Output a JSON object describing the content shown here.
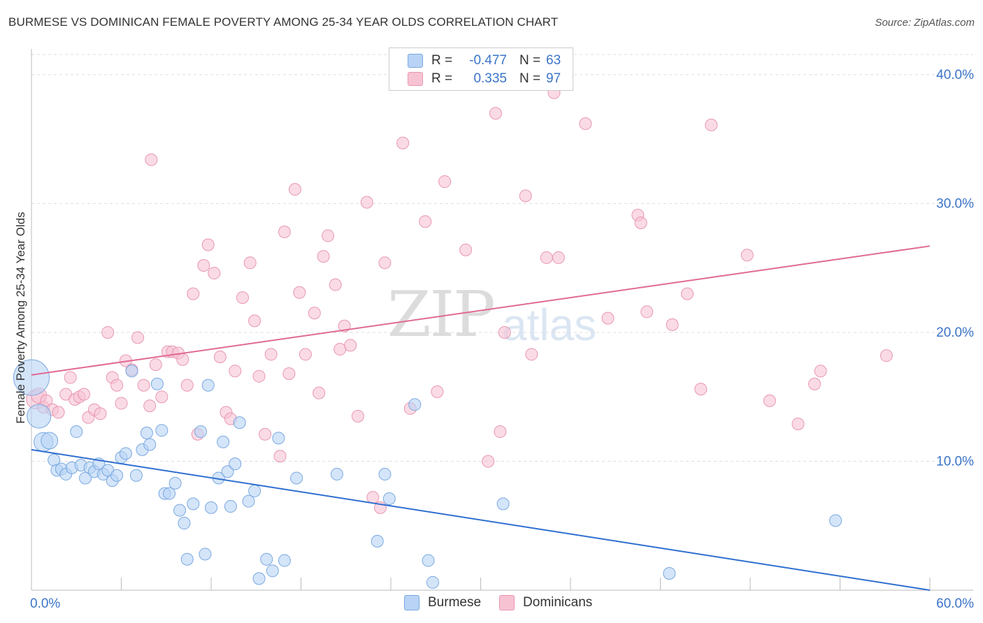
{
  "title": "BURMESE VS DOMINICAN FEMALE POVERTY AMONG 25-34 YEAR OLDS CORRELATION CHART",
  "source": "Source: ZipAtlas.com",
  "watermark": {
    "zip": "ZIP",
    "atlas": "atlas"
  },
  "legend": {
    "rows": [
      {
        "r_label": "R =",
        "r_value": "-0.477",
        "n_label": "N =",
        "n_value": "63",
        "color": "#b8d3f5"
      },
      {
        "r_label": "R =",
        "r_value": "0.335",
        "n_label": "N =",
        "n_value": "97",
        "color": "#f7c3d3"
      }
    ]
  },
  "bottom_legend": [
    {
      "label": "Burmese",
      "color": "#b8d3f5"
    },
    {
      "label": "Dominicans",
      "color": "#f7c3d3"
    }
  ],
  "chart_data": {
    "type": "scatter",
    "title": "BURMESE VS DOMINICAN FEMALE POVERTY AMONG 25-34 YEAR OLDS CORRELATION CHART",
    "xlabel": "",
    "ylabel": "Female Poverty Among 25-34 Year Olds",
    "xlim": [
      0,
      60
    ],
    "ylim": [
      0,
      42
    ],
    "x_tick_labels": [
      "0.0%",
      "60.0%"
    ],
    "y_ticks": [
      10,
      20,
      30,
      40
    ],
    "y_tick_labels": [
      "10.0%",
      "20.0%",
      "30.0%",
      "40.0%"
    ],
    "grid": true,
    "series": [
      {
        "name": "Burmese",
        "color": "#b8d3f5",
        "stroke": "#7aa8e0",
        "trend": {
          "x": [
            0,
            60
          ],
          "y": [
            10.9,
            0.0
          ],
          "color": "#2f6fd0"
        },
        "points": [
          [
            0.0,
            16.5,
            3
          ],
          [
            0.5,
            13.5,
            2
          ],
          [
            0.8,
            11.5,
            1.6
          ],
          [
            1.2,
            11.6,
            1.4
          ],
          [
            1.5,
            10.1,
            1
          ],
          [
            1.7,
            9.3,
            1
          ],
          [
            2.0,
            9.4,
            1
          ],
          [
            2.3,
            9.0,
            1
          ],
          [
            2.7,
            9.5,
            1
          ],
          [
            3.0,
            12.3,
            1
          ],
          [
            3.3,
            9.7,
            1
          ],
          [
            3.6,
            8.7,
            1
          ],
          [
            3.9,
            9.5,
            1
          ],
          [
            4.2,
            9.2,
            1
          ],
          [
            4.5,
            9.8,
            1
          ],
          [
            4.8,
            9.0,
            1
          ],
          [
            5.1,
            9.3,
            1
          ],
          [
            5.4,
            8.5,
            1
          ],
          [
            5.7,
            8.9,
            1
          ],
          [
            6.0,
            10.3,
            1
          ],
          [
            6.3,
            10.6,
            1
          ],
          [
            6.7,
            17.0,
            1
          ],
          [
            7.0,
            8.9,
            1
          ],
          [
            7.4,
            10.9,
            1
          ],
          [
            7.7,
            12.2,
            1
          ],
          [
            7.9,
            11.3,
            1
          ],
          [
            8.4,
            16.0,
            1
          ],
          [
            8.7,
            12.4,
            1
          ],
          [
            8.9,
            7.5,
            1
          ],
          [
            9.2,
            7.5,
            1
          ],
          [
            9.6,
            8.3,
            1
          ],
          [
            9.9,
            6.2,
            1
          ],
          [
            10.2,
            5.2,
            1
          ],
          [
            10.4,
            2.4,
            1
          ],
          [
            10.8,
            6.7,
            1
          ],
          [
            11.3,
            12.3,
            1
          ],
          [
            11.6,
            2.8,
            1
          ],
          [
            11.8,
            15.9,
            1
          ],
          [
            12.0,
            6.4,
            1
          ],
          [
            12.5,
            8.7,
            1
          ],
          [
            12.8,
            11.5,
            1
          ],
          [
            13.1,
            9.2,
            1
          ],
          [
            13.3,
            6.5,
            1
          ],
          [
            13.6,
            9.8,
            1
          ],
          [
            13.9,
            13.0,
            1
          ],
          [
            14.5,
            6.9,
            1
          ],
          [
            14.9,
            7.7,
            1
          ],
          [
            15.2,
            0.9,
            1
          ],
          [
            15.7,
            2.4,
            1
          ],
          [
            16.1,
            1.5,
            1
          ],
          [
            16.5,
            11.8,
            1
          ],
          [
            16.9,
            2.3,
            1
          ],
          [
            17.7,
            8.7,
            1
          ],
          [
            20.4,
            9.0,
            1
          ],
          [
            23.1,
            3.8,
            1
          ],
          [
            23.6,
            9.0,
            1
          ],
          [
            23.9,
            7.1,
            1
          ],
          [
            25.6,
            14.4,
            1
          ],
          [
            26.5,
            2.3,
            1
          ],
          [
            26.8,
            0.6,
            1
          ],
          [
            31.5,
            6.7,
            1
          ],
          [
            42.6,
            1.3,
            1
          ],
          [
            53.7,
            5.4,
            1
          ]
        ]
      },
      {
        "name": "Dominicans",
        "color": "#f7c3d3",
        "stroke": "#e897b1",
        "trend": {
          "x": [
            0,
            60
          ],
          "y": [
            16.7,
            26.7
          ],
          "color": "#e06a93"
        },
        "points": [
          [
            0.3,
            14.8,
            1.6
          ],
          [
            0.5,
            15.1,
            1.3
          ],
          [
            0.8,
            14.2,
            1
          ],
          [
            1.0,
            14.7,
            1
          ],
          [
            1.4,
            14.0,
            1
          ],
          [
            1.8,
            13.8,
            1
          ],
          [
            2.3,
            15.2,
            1
          ],
          [
            2.6,
            16.5,
            1
          ],
          [
            2.9,
            14.8,
            1
          ],
          [
            3.2,
            15.0,
            1
          ],
          [
            3.5,
            15.2,
            1
          ],
          [
            3.8,
            13.4,
            1
          ],
          [
            4.2,
            14.0,
            1
          ],
          [
            4.6,
            13.7,
            1
          ],
          [
            5.1,
            20.0,
            1
          ],
          [
            5.4,
            16.5,
            1
          ],
          [
            5.7,
            15.9,
            1
          ],
          [
            6.0,
            14.5,
            1
          ],
          [
            6.3,
            17.8,
            1
          ],
          [
            6.7,
            17.1,
            1
          ],
          [
            7.1,
            19.6,
            1
          ],
          [
            7.5,
            15.9,
            1
          ],
          [
            7.9,
            14.3,
            1
          ],
          [
            8.0,
            33.4,
            1
          ],
          [
            8.3,
            17.5,
            1
          ],
          [
            8.7,
            15.0,
            1
          ],
          [
            9.1,
            18.5,
            1
          ],
          [
            9.4,
            18.5,
            1
          ],
          [
            9.8,
            18.4,
            1
          ],
          [
            10.1,
            17.9,
            1
          ],
          [
            10.4,
            15.9,
            1
          ],
          [
            10.8,
            23.0,
            1
          ],
          [
            11.1,
            12.1,
            1
          ],
          [
            11.5,
            25.2,
            1
          ],
          [
            11.8,
            26.8,
            1
          ],
          [
            12.2,
            24.6,
            1
          ],
          [
            12.6,
            18.1,
            1
          ],
          [
            13.0,
            13.8,
            1
          ],
          [
            13.3,
            13.3,
            1
          ],
          [
            13.6,
            17.0,
            1
          ],
          [
            14.1,
            22.7,
            1
          ],
          [
            14.6,
            25.4,
            1
          ],
          [
            14.9,
            20.9,
            1
          ],
          [
            15.2,
            16.6,
            1
          ],
          [
            15.6,
            12.1,
            1
          ],
          [
            16.0,
            18.3,
            1
          ],
          [
            16.6,
            10.4,
            1
          ],
          [
            16.9,
            27.8,
            1
          ],
          [
            17.2,
            16.8,
            1
          ],
          [
            17.6,
            31.1,
            1
          ],
          [
            17.9,
            23.1,
            1
          ],
          [
            18.3,
            18.3,
            1
          ],
          [
            18.9,
            21.5,
            1
          ],
          [
            19.2,
            15.3,
            1
          ],
          [
            19.5,
            25.9,
            1
          ],
          [
            19.8,
            27.5,
            1
          ],
          [
            20.3,
            23.7,
            1
          ],
          [
            20.6,
            18.7,
            1
          ],
          [
            20.9,
            20.5,
            1
          ],
          [
            21.3,
            19.0,
            1
          ],
          [
            21.8,
            13.5,
            1
          ],
          [
            22.4,
            30.1,
            1
          ],
          [
            22.8,
            7.2,
            1
          ],
          [
            23.3,
            6.4,
            1
          ],
          [
            23.6,
            25.4,
            1
          ],
          [
            24.8,
            34.7,
            1
          ],
          [
            25.3,
            14.1,
            1
          ],
          [
            26.3,
            28.6,
            1
          ],
          [
            27.1,
            15.4,
            1
          ],
          [
            27.6,
            31.7,
            1
          ],
          [
            29.0,
            26.4,
            1
          ],
          [
            30.5,
            10.0,
            1
          ],
          [
            31.0,
            37.0,
            1
          ],
          [
            31.3,
            12.3,
            1
          ],
          [
            31.6,
            20.0,
            1
          ],
          [
            33.0,
            30.6,
            1
          ],
          [
            33.4,
            18.3,
            1
          ],
          [
            34.4,
            25.8,
            1
          ],
          [
            34.9,
            38.6,
            1
          ],
          [
            35.2,
            25.8,
            1
          ],
          [
            37.0,
            36.2,
            1
          ],
          [
            38.5,
            21.1,
            1
          ],
          [
            40.5,
            29.1,
            1
          ],
          [
            40.7,
            28.5,
            1
          ],
          [
            41.1,
            21.6,
            1
          ],
          [
            42.8,
            20.6,
            1
          ],
          [
            43.8,
            23.0,
            1
          ],
          [
            44.7,
            15.6,
            1
          ],
          [
            45.4,
            36.1,
            1
          ],
          [
            47.8,
            26.0,
            1
          ],
          [
            49.3,
            14.7,
            1
          ],
          [
            51.2,
            12.9,
            1
          ],
          [
            52.3,
            16.0,
            1
          ],
          [
            52.7,
            17.0,
            1
          ],
          [
            57.1,
            18.2,
            1
          ]
        ]
      }
    ]
  }
}
